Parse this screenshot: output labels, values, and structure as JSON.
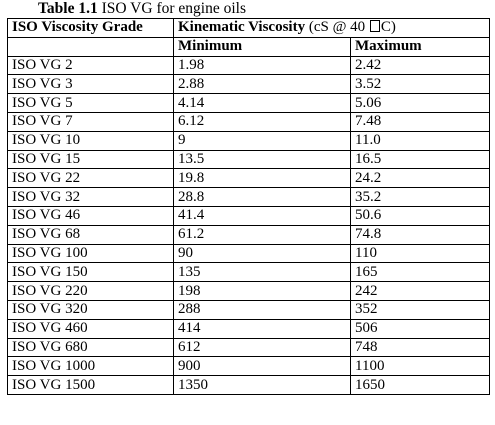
{
  "caption": {
    "number": "Table 1.1",
    "title": "ISO VG for engine oils"
  },
  "table": {
    "headers": {
      "grade": "ISO Viscosity Grade",
      "kinematic": "Kinematic Viscosity",
      "unit_prefix": "(cS @ 40 ",
      "unit_suffix": "C)",
      "minimum": "Minimum",
      "maximum": "Maximum"
    },
    "rows": [
      {
        "grade": "ISO VG 2",
        "min": "1.98",
        "max": "2.42"
      },
      {
        "grade": "ISO VG 3",
        "min": "2.88",
        "max": "3.52"
      },
      {
        "grade": "ISO VG 5",
        "min": "4.14",
        "max": "5.06"
      },
      {
        "grade": "ISO VG 7",
        "min": "6.12",
        "max": "7.48"
      },
      {
        "grade": "ISO VG 10",
        "min": "9",
        "max": "11.0"
      },
      {
        "grade": "ISO VG 15",
        "min": "13.5",
        "max": "16.5"
      },
      {
        "grade": "ISO VG 22",
        "min": "19.8",
        "max": "24.2"
      },
      {
        "grade": "ISO VG 32",
        "min": "28.8",
        "max": "35.2"
      },
      {
        "grade": "ISO VG 46",
        "min": "41.4",
        "max": "50.6"
      },
      {
        "grade": "ISO VG 68",
        "min": "61.2",
        "max": "74.8"
      },
      {
        "grade": "ISO VG 100",
        "min": "90",
        "max": "110"
      },
      {
        "grade": "ISO VG 150",
        "min": "135",
        "max": "165"
      },
      {
        "grade": "ISO VG 220",
        "min": "198",
        "max": "242"
      },
      {
        "grade": "ISO VG 320",
        "min": "288",
        "max": "352"
      },
      {
        "grade": "ISO VG 460",
        "min": "414",
        "max": "506"
      },
      {
        "grade": "ISO VG 680",
        "min": "612",
        "max": "748"
      },
      {
        "grade": "ISO VG 1000",
        "min": "900",
        "max": "1100"
      },
      {
        "grade": "ISO VG 1500",
        "min": "1350",
        "max": "1650"
      }
    ]
  }
}
